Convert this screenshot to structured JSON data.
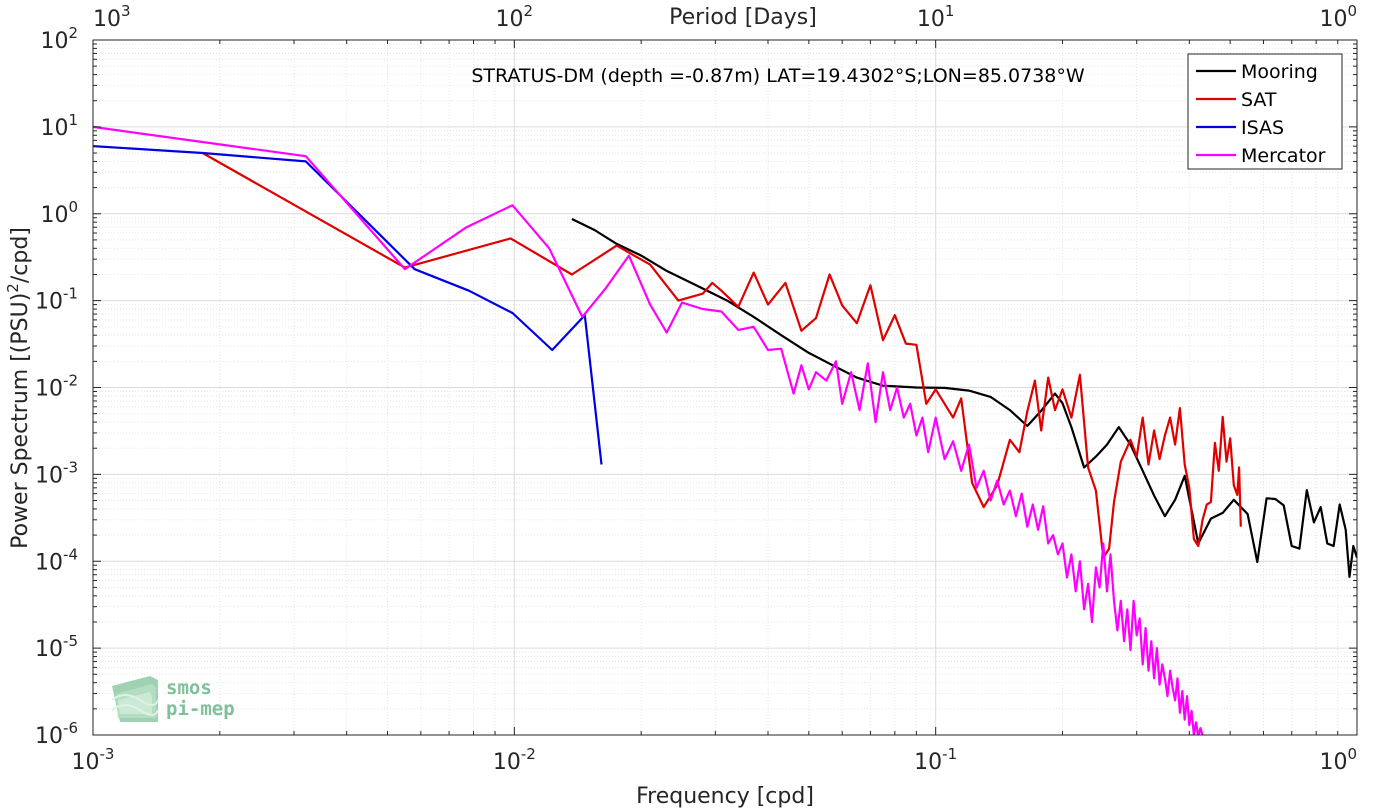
{
  "chart_data": {
    "type": "line",
    "title": "",
    "annotation": "STRATUS-DM (depth =-0.87m) LAT=19.4302°S;LON=85.0738°W",
    "xlabel": "Frequency [cpd]",
    "ylabel": "Power Spectrum [(PSU)²/cpd]",
    "top_xlabel": "Period [Days]",
    "x_scale": "log",
    "y_scale": "log",
    "xlim": [
      0.001,
      1
    ],
    "ylim": [
      1e-06,
      100
    ],
    "grid": true,
    "legend_position": "top-right",
    "x_ticks": [
      {
        "base": "10",
        "exp": "-3"
      },
      {
        "base": "10",
        "exp": "-2"
      },
      {
        "base": "10",
        "exp": "-1"
      },
      {
        "base": "10",
        "exp": "0"
      }
    ],
    "top_ticks": [
      {
        "base": "10",
        "exp": "3"
      },
      {
        "base": "10",
        "exp": "2"
      },
      {
        "base": "10",
        "exp": "1"
      },
      {
        "base": "10",
        "exp": "0"
      }
    ],
    "y_ticks": [
      {
        "base": "10",
        "exp": "-6"
      },
      {
        "base": "10",
        "exp": "-5"
      },
      {
        "base": "10",
        "exp": "-4"
      },
      {
        "base": "10",
        "exp": "-3"
      },
      {
        "base": "10",
        "exp": "-2"
      },
      {
        "base": "10",
        "exp": "-1"
      },
      {
        "base": "10",
        "exp": "0"
      },
      {
        "base": "10",
        "exp": "1"
      },
      {
        "base": "10",
        "exp": "2"
      }
    ],
    "series": [
      {
        "name": "Mooring",
        "color": "#000000",
        "points": [
          [
            0.0137,
            0.87
          ],
          [
            0.0155,
            0.65
          ],
          [
            0.0175,
            0.45
          ],
          [
            0.02,
            0.33
          ],
          [
            0.023,
            0.22
          ],
          [
            0.027,
            0.15
          ],
          [
            0.032,
            0.1
          ],
          [
            0.037,
            0.065
          ],
          [
            0.043,
            0.04
          ],
          [
            0.05,
            0.025
          ],
          [
            0.057,
            0.018
          ],
          [
            0.065,
            0.013
          ],
          [
            0.075,
            0.0105
          ],
          [
            0.09,
            0.01
          ],
          [
            0.105,
            0.0099
          ],
          [
            0.12,
            0.0092
          ],
          [
            0.135,
            0.0078
          ],
          [
            0.15,
            0.0055
          ],
          [
            0.165,
            0.0036
          ],
          [
            0.178,
            0.0054
          ],
          [
            0.192,
            0.0085
          ],
          [
            0.2,
            0.0066
          ],
          [
            0.21,
            0.0035
          ],
          [
            0.225,
            0.0012
          ],
          [
            0.24,
            0.0016
          ],
          [
            0.255,
            0.0022
          ],
          [
            0.272,
            0.0035
          ],
          [
            0.29,
            0.0022
          ],
          [
            0.31,
            0.0011
          ],
          [
            0.33,
            0.00057
          ],
          [
            0.35,
            0.00033
          ],
          [
            0.37,
            0.00051
          ],
          [
            0.39,
            0.00096
          ],
          [
            0.42,
            0.00016
          ],
          [
            0.45,
            0.00031
          ],
          [
            0.48,
            0.00036
          ],
          [
            0.51,
            0.00051
          ],
          [
            0.55,
            0.00035
          ],
          [
            0.58,
            9.8e-05
          ],
          [
            0.61,
            0.00053
          ],
          [
            0.64,
            0.00052
          ],
          [
            0.67,
            0.00044
          ],
          [
            0.7,
            0.00015
          ],
          [
            0.73,
            0.00014
          ],
          [
            0.76,
            0.00066
          ],
          [
            0.79,
            0.00028
          ],
          [
            0.82,
            0.00042
          ],
          [
            0.85,
            0.00016
          ],
          [
            0.88,
            0.00015
          ],
          [
            0.91,
            0.00045
          ],
          [
            0.94,
            0.00023
          ],
          [
            0.96,
            6.6e-05
          ],
          [
            0.98,
            0.00015
          ],
          [
            1.0,
            0.00011
          ]
        ]
      },
      {
        "name": "SAT",
        "color": "#e00000",
        "points": [
          [
            0.00182,
            5.0
          ],
          [
            0.0055,
            0.24
          ],
          [
            0.0098,
            0.52
          ],
          [
            0.0137,
            0.2
          ],
          [
            0.0175,
            0.43
          ],
          [
            0.021,
            0.26
          ],
          [
            0.0245,
            0.1
          ],
          [
            0.028,
            0.12
          ],
          [
            0.0295,
            0.16
          ],
          [
            0.031,
            0.13
          ],
          [
            0.034,
            0.085
          ],
          [
            0.037,
            0.21
          ],
          [
            0.04,
            0.09
          ],
          [
            0.044,
            0.16
          ],
          [
            0.048,
            0.045
          ],
          [
            0.052,
            0.063
          ],
          [
            0.056,
            0.2
          ],
          [
            0.06,
            0.088
          ],
          [
            0.065,
            0.055
          ],
          [
            0.07,
            0.15
          ],
          [
            0.075,
            0.035
          ],
          [
            0.08,
            0.068
          ],
          [
            0.085,
            0.032
          ],
          [
            0.09,
            0.031
          ],
          [
            0.095,
            0.0065
          ],
          [
            0.1,
            0.0095
          ],
          [
            0.11,
            0.0045
          ],
          [
            0.115,
            0.0075
          ],
          [
            0.122,
            0.0008
          ],
          [
            0.13,
            0.00042
          ],
          [
            0.14,
            0.00075
          ],
          [
            0.15,
            0.0025
          ],
          [
            0.158,
            0.0018
          ],
          [
            0.165,
            0.0053
          ],
          [
            0.172,
            0.012
          ],
          [
            0.178,
            0.0032
          ],
          [
            0.185,
            0.013
          ],
          [
            0.192,
            0.0055
          ],
          [
            0.2,
            0.0095
          ],
          [
            0.21,
            0.0045
          ],
          [
            0.22,
            0.014
          ],
          [
            0.23,
            0.0012
          ],
          [
            0.24,
            0.00065
          ],
          [
            0.25,
            0.00011
          ],
          [
            0.258,
            0.00014
          ],
          [
            0.265,
            0.00048
          ],
          [
            0.275,
            0.0014
          ],
          [
            0.29,
            0.0025
          ],
          [
            0.3,
            0.0016
          ],
          [
            0.31,
            0.0045
          ],
          [
            0.32,
            0.0013
          ],
          [
            0.33,
            0.0032
          ],
          [
            0.34,
            0.0015
          ],
          [
            0.35,
            0.0028
          ],
          [
            0.36,
            0.0045
          ],
          [
            0.37,
            0.0022
          ],
          [
            0.38,
            0.0058
          ],
          [
            0.39,
            0.0013
          ],
          [
            0.4,
            0.0007
          ],
          [
            0.41,
            0.00018
          ],
          [
            0.42,
            0.00015
          ],
          [
            0.43,
            0.0003
          ],
          [
            0.44,
            0.00045
          ],
          [
            0.45,
            0.00048
          ],
          [
            0.46,
            0.0023
          ],
          [
            0.47,
            0.0011
          ],
          [
            0.48,
            0.0046
          ],
          [
            0.49,
            0.0014
          ],
          [
            0.5,
            0.0026
          ],
          [
            0.51,
            0.00075
          ],
          [
            0.52,
            0.00058
          ],
          [
            0.525,
            0.0012
          ],
          [
            0.53,
            0.00025
          ]
        ]
      },
      {
        "name": "ISAS",
        "color": "#0000e6",
        "points": [
          [
            0.001,
            6.0
          ],
          [
            0.00182,
            5.0
          ],
          [
            0.0032,
            4.0
          ],
          [
            0.0058,
            0.23
          ],
          [
            0.0078,
            0.13
          ],
          [
            0.0099,
            0.072
          ],
          [
            0.0123,
            0.027
          ],
          [
            0.0147,
            0.068
          ],
          [
            0.0161,
            0.0013
          ]
        ]
      },
      {
        "name": "Mercator",
        "color": "#ff00ff",
        "points": [
          [
            0.001,
            10.0
          ],
          [
            0.0032,
            4.6
          ],
          [
            0.0055,
            0.23
          ],
          [
            0.0077,
            0.7
          ],
          [
            0.0099,
            1.25
          ],
          [
            0.0121,
            0.4
          ],
          [
            0.0145,
            0.065
          ],
          [
            0.0165,
            0.14
          ],
          [
            0.0187,
            0.33
          ],
          [
            0.021,
            0.09
          ],
          [
            0.023,
            0.043
          ],
          [
            0.025,
            0.095
          ],
          [
            0.028,
            0.08
          ],
          [
            0.031,
            0.075
          ],
          [
            0.034,
            0.046
          ],
          [
            0.037,
            0.05
          ],
          [
            0.04,
            0.027
          ],
          [
            0.043,
            0.028
          ],
          [
            0.046,
            0.0085
          ],
          [
            0.048,
            0.018
          ],
          [
            0.05,
            0.0095
          ],
          [
            0.052,
            0.015
          ],
          [
            0.055,
            0.012
          ],
          [
            0.058,
            0.02
          ],
          [
            0.06,
            0.0065
          ],
          [
            0.063,
            0.015
          ],
          [
            0.066,
            0.0055
          ],
          [
            0.069,
            0.019
          ],
          [
            0.072,
            0.004
          ],
          [
            0.075,
            0.015
          ],
          [
            0.078,
            0.0055
          ],
          [
            0.081,
            0.01
          ],
          [
            0.084,
            0.0045
          ],
          [
            0.087,
            0.0065
          ],
          [
            0.09,
            0.0028
          ],
          [
            0.093,
            0.0045
          ],
          [
            0.096,
            0.0018
          ],
          [
            0.1,
            0.0045
          ],
          [
            0.105,
            0.0015
          ],
          [
            0.11,
            0.0024
          ],
          [
            0.115,
            0.0011
          ],
          [
            0.12,
            0.0022
          ],
          [
            0.125,
            0.0007
          ],
          [
            0.13,
            0.0011
          ],
          [
            0.135,
            0.0005
          ],
          [
            0.14,
            0.00085
          ],
          [
            0.145,
            0.00045
          ],
          [
            0.15,
            0.00065
          ],
          [
            0.155,
            0.00033
          ],
          [
            0.16,
            0.0006
          ],
          [
            0.165,
            0.00025
          ],
          [
            0.17,
            0.00045
          ],
          [
            0.175,
            0.00023
          ],
          [
            0.18,
            0.00043
          ],
          [
            0.185,
            0.00016
          ],
          [
            0.19,
            0.0002
          ],
          [
            0.195,
            0.00012
          ],
          [
            0.2,
            0.00016
          ],
          [
            0.205,
            6.5e-05
          ],
          [
            0.21,
            0.00012
          ],
          [
            0.215,
            4.5e-05
          ],
          [
            0.22,
            0.0001
          ],
          [
            0.225,
            2.8e-05
          ],
          [
            0.23,
            5.5e-05
          ],
          [
            0.235,
            2e-05
          ],
          [
            0.24,
            8.5e-05
          ],
          [
            0.245,
            5e-05
          ],
          [
            0.25,
            0.00016
          ],
          [
            0.255,
            4.5e-05
          ],
          [
            0.26,
            0.00012
          ],
          [
            0.265,
            3.5e-05
          ],
          [
            0.27,
            1.6e-05
          ],
          [
            0.275,
            3.5e-05
          ],
          [
            0.28,
            1.2e-05
          ],
          [
            0.285,
            2.8e-05
          ],
          [
            0.29,
            9.5e-06
          ],
          [
            0.295,
            3.5e-05
          ],
          [
            0.3,
            1.4e-05
          ],
          [
            0.305,
            2.2e-05
          ],
          [
            0.31,
            6.5e-06
          ],
          [
            0.315,
            1.7e-05
          ],
          [
            0.32,
            5.5e-06
          ],
          [
            0.325,
            1.2e-05
          ],
          [
            0.33,
            4.5e-06
          ],
          [
            0.335,
            1e-05
          ],
          [
            0.34,
            3.8e-06
          ],
          [
            0.345,
            6.5e-06
          ],
          [
            0.35,
            4.5e-06
          ],
          [
            0.355,
            2.8e-06
          ],
          [
            0.36,
            5.5e-06
          ],
          [
            0.365,
            3.5e-06
          ],
          [
            0.37,
            2.5e-06
          ],
          [
            0.375,
            4.5e-06
          ],
          [
            0.38,
            1.8e-06
          ],
          [
            0.385,
            3.2e-06
          ],
          [
            0.39,
            1.5e-06
          ],
          [
            0.395,
            2.8e-06
          ],
          [
            0.4,
            1.3e-06
          ],
          [
            0.405,
            1.9e-06
          ],
          [
            0.41,
            1e-06
          ],
          [
            0.415,
            1.4e-06
          ],
          [
            0.42,
            9.5e-07
          ],
          [
            0.425,
            1.2e-06
          ],
          [
            0.43,
            1e-06
          ]
        ]
      }
    ]
  },
  "logo": {
    "line1": "smos",
    "line2": "pi-mep"
  }
}
